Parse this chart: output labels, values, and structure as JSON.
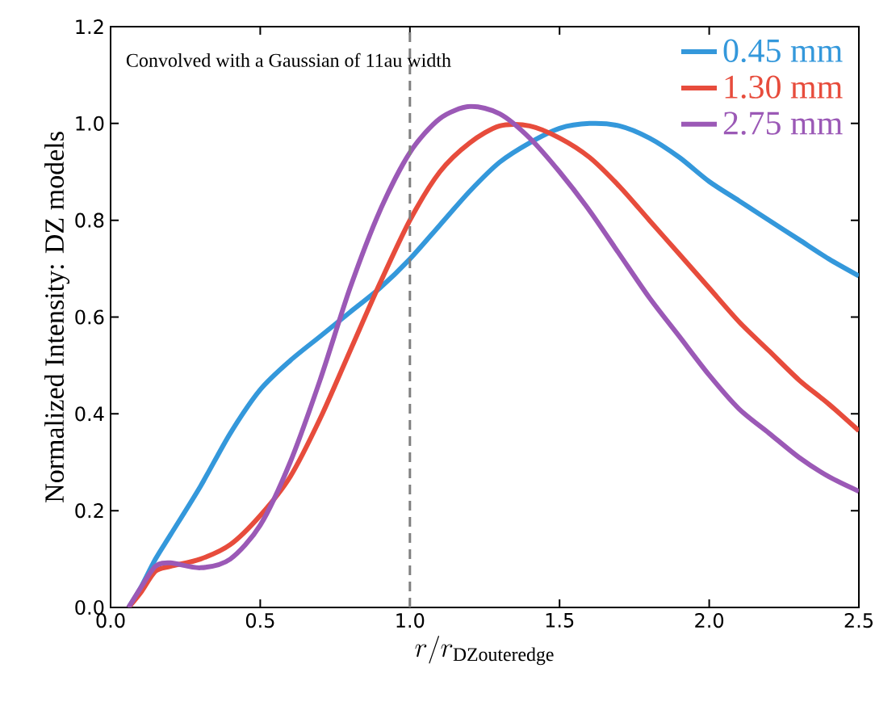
{
  "chart_data": {
    "type": "line",
    "xlabel": "r/r_{\\mathrm{DZouteredge}}",
    "ylabel": "Normalized Intensity: DZ models",
    "annotations": [
      "Convolved with a Gaussian of 11au width"
    ],
    "xlim": [
      0,
      2.5
    ],
    "ylim": [
      0,
      1.2
    ],
    "xticks": [
      {
        "value": 0,
        "label": "0.0"
      },
      {
        "value": 0.5,
        "label": "0.5"
      },
      {
        "value": 1,
        "label": "1.0"
      },
      {
        "value": 1.5,
        "label": "1.5"
      },
      {
        "value": 2,
        "label": "2.0"
      },
      {
        "value": 2.5,
        "label": "2.5"
      }
    ],
    "yticks": [
      {
        "value": 0,
        "label": "0.0"
      },
      {
        "value": 0.2,
        "label": "0.2"
      },
      {
        "value": 0.4,
        "label": "0.4"
      },
      {
        "value": 0.6,
        "label": "0.6"
      },
      {
        "value": 0.8,
        "label": "0.8"
      },
      {
        "value": 1,
        "label": "1.0"
      },
      {
        "value": 1.2,
        "label": "1.2"
      }
    ],
    "x": [
      0.06,
      0.1,
      0.15,
      0.2,
      0.3,
      0.4,
      0.5,
      0.6,
      0.7,
      0.8,
      0.9,
      1.0,
      1.1,
      1.2,
      1.3,
      1.4,
      1.5,
      1.6,
      1.7,
      1.8,
      1.9,
      2.0,
      2.1,
      2.2,
      2.3,
      2.4,
      2.5
    ],
    "series": [
      {
        "name": "0.45 mm",
        "color": "#3498db",
        "values": [
          0,
          0.04,
          0.1,
          0.15,
          0.25,
          0.36,
          0.45,
          0.51,
          0.56,
          0.61,
          0.66,
          0.72,
          0.79,
          0.86,
          0.92,
          0.96,
          0.99,
          1.0,
          0.995,
          0.97,
          0.93,
          0.88,
          0.84,
          0.8,
          0.76,
          0.72,
          0.685
        ]
      },
      {
        "name": "1.30 mm",
        "color": "#e74c3c",
        "values": [
          0,
          0.03,
          0.075,
          0.085,
          0.1,
          0.13,
          0.19,
          0.27,
          0.39,
          0.53,
          0.67,
          0.8,
          0.9,
          0.96,
          0.995,
          0.995,
          0.97,
          0.93,
          0.87,
          0.8,
          0.73,
          0.66,
          0.59,
          0.53,
          0.47,
          0.42,
          0.365
        ]
      },
      {
        "name": "2.75 mm",
        "color": "#9b59b6",
        "values": [
          0,
          0.04,
          0.085,
          0.092,
          0.082,
          0.1,
          0.17,
          0.3,
          0.47,
          0.66,
          0.82,
          0.94,
          1.01,
          1.035,
          1.02,
          0.97,
          0.9,
          0.82,
          0.73,
          0.64,
          0.56,
          0.48,
          0.41,
          0.36,
          0.31,
          0.27,
          0.24
        ]
      }
    ],
    "ref_lines": [
      {
        "axis": "x",
        "value": 1.0,
        "color": "#808080",
        "line_style": "dashed"
      }
    ],
    "legend": "top right",
    "marker": "none",
    "line_style": "solid",
    "grid": false
  }
}
